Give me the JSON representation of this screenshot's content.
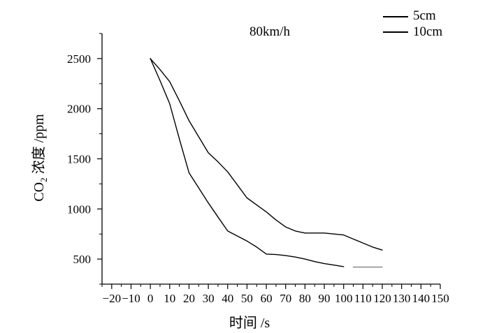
{
  "chart_data": {
    "type": "line",
    "title": "80km/h",
    "xlabel": "时间 /s",
    "ylabel_parts": {
      "prefix": "CO",
      "subscript": "2",
      "suffix": " 浓度 /ppm"
    },
    "xlim": [
      -25,
      150
    ],
    "ylim": [
      250,
      2750
    ],
    "x_ticks": [
      -20,
      -10,
      0,
      10,
      20,
      30,
      40,
      50,
      60,
      70,
      80,
      90,
      100,
      110,
      120,
      130,
      140,
      150
    ],
    "x_tick_labels": [
      "−20",
      "−10",
      "0",
      "10",
      "20",
      "30",
      "40",
      "50",
      "60",
      "70",
      "80",
      "90",
      "100",
      "110",
      "120",
      "130",
      "140",
      "150"
    ],
    "y_ticks": [
      500,
      1000,
      1500,
      2000,
      2500
    ],
    "y_tick_labels": [
      "500",
      "1000",
      "1500",
      "2000",
      "2500"
    ],
    "legend_position": "top-right",
    "series": [
      {
        "name": "5cm",
        "color": "#000000",
        "x": [
          0,
          5,
          10,
          15,
          20,
          25,
          30,
          35,
          40,
          45,
          50,
          55,
          60,
          65,
          70,
          75,
          80,
          85,
          90,
          95,
          100,
          105,
          110,
          115,
          120
        ],
        "y": [
          2500,
          2390,
          2270,
          2080,
          1880,
          1720,
          1560,
          1470,
          1370,
          1240,
          1110,
          1040,
          970,
          890,
          820,
          780,
          760,
          760,
          760,
          750,
          740,
          700,
          660,
          620,
          590
        ]
      },
      {
        "name": "10cm",
        "color": "#000000",
        "x": [
          0,
          5,
          10,
          15,
          20,
          25,
          30,
          35,
          40,
          45,
          50,
          55,
          60,
          65,
          70,
          75,
          80,
          85,
          90,
          95,
          100
        ],
        "y": [
          2500,
          2280,
          2050,
          1700,
          1360,
          1210,
          1060,
          920,
          780,
          730,
          680,
          620,
          550,
          545,
          535,
          520,
          500,
          475,
          455,
          440,
          425
        ]
      },
      {
        "color": "#808080",
        "x": [
          105,
          120
        ],
        "y": [
          420,
          420
        ]
      }
    ]
  }
}
